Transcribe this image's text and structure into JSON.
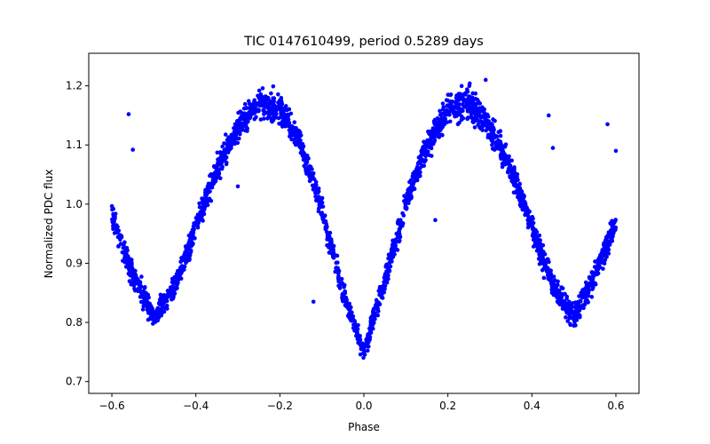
{
  "chart_data": {
    "type": "scatter",
    "title": "TIC 0147610499, period 0.5289 days",
    "xlabel": "Phase",
    "ylabel": "Normalized PDC flux",
    "xlim": [
      -0.655,
      0.655
    ],
    "ylim": [
      0.68,
      1.255
    ],
    "xticks": [
      -0.6,
      -0.4,
      -0.2,
      0.0,
      0.2,
      0.4,
      0.6
    ],
    "xtick_labels": [
      "−0.6",
      "−0.4",
      "−0.2",
      "0.0",
      "0.2",
      "0.4",
      "0.6"
    ],
    "yticks": [
      0.7,
      0.8,
      0.9,
      1.0,
      1.1,
      1.2
    ],
    "ytick_labels": [
      "0.7",
      "0.8",
      "0.9",
      "1.0",
      "1.1",
      "1.2"
    ],
    "grid": false,
    "marker_color": "#0000ff",
    "envelope": {
      "x": [
        -0.6,
        -0.55,
        -0.5,
        -0.45,
        -0.4,
        -0.35,
        -0.3,
        -0.25,
        -0.2,
        -0.15,
        -0.1,
        -0.05,
        0.0,
        0.05,
        0.1,
        0.15,
        0.2,
        0.25,
        0.3,
        0.35,
        0.4,
        0.45,
        0.5,
        0.55,
        0.6
      ],
      "y_center": [
        0.98,
        0.88,
        0.81,
        0.86,
        0.96,
        1.06,
        1.13,
        1.17,
        1.16,
        1.1,
        0.99,
        0.85,
        0.75,
        0.87,
        1.0,
        1.1,
        1.16,
        1.17,
        1.13,
        1.06,
        0.96,
        0.86,
        0.81,
        0.88,
        0.97
      ],
      "y_spread": [
        0.035,
        0.04,
        0.035,
        0.035,
        0.035,
        0.035,
        0.035,
        0.04,
        0.04,
        0.035,
        0.035,
        0.035,
        0.03,
        0.035,
        0.035,
        0.04,
        0.045,
        0.05,
        0.045,
        0.04,
        0.035,
        0.035,
        0.035,
        0.04,
        0.035
      ]
    },
    "outliers": [
      {
        "x": -0.56,
        "y": 1.152
      },
      {
        "x": -0.55,
        "y": 1.092
      },
      {
        "x": -0.12,
        "y": 0.835
      },
      {
        "x": 0.17,
        "y": 0.973
      },
      {
        "x": 0.44,
        "y": 1.15
      },
      {
        "x": 0.45,
        "y": 1.095
      },
      {
        "x": 0.58,
        "y": 1.135
      },
      {
        "x": 0.6,
        "y": 1.09
      },
      {
        "x": -0.3,
        "y": 1.03
      },
      {
        "x": 0.29,
        "y": 1.21
      }
    ]
  }
}
